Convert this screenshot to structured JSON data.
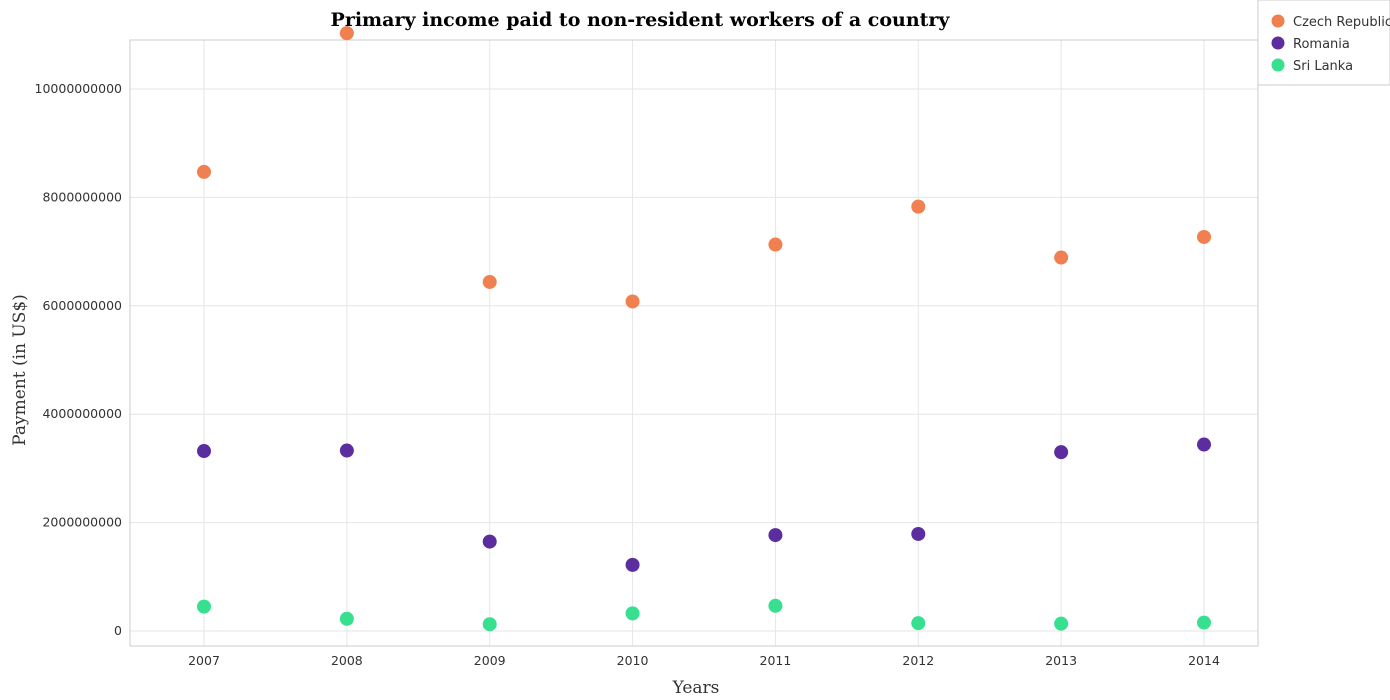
{
  "chart_data": {
    "type": "scatter",
    "title": "Primary income paid to non-resident workers of a country",
    "xlabel": "Years",
    "ylabel": "Payment (in US$)",
    "categories": [
      "2007",
      "2008",
      "2009",
      "2010",
      "2011",
      "2012",
      "2013",
      "2014"
    ],
    "ylim": [
      0,
      11500000000
    ],
    "yticks": [
      0,
      2000000000,
      4000000000,
      6000000000,
      8000000000,
      10000000000
    ],
    "ytick_labels": [
      "0",
      "2000000000",
      "4000000000",
      "6000000000",
      "8000000000",
      "10000000000"
    ],
    "grid": true,
    "legend_position": "top-right",
    "series": [
      {
        "name": "Czech Republic",
        "color": "#f0804f",
        "values": [
          8470000000,
          11030000000,
          6440000000,
          6080000000,
          7130000000,
          7830000000,
          6890000000,
          7270000000
        ]
      },
      {
        "name": "Romania",
        "color": "#5b2d9e",
        "values": [
          3320000000,
          3330000000,
          1650000000,
          1220000000,
          1770000000,
          1790000000,
          3300000000,
          3440000000
        ]
      },
      {
        "name": "Sri Lanka",
        "color": "#36e08e",
        "values": [
          450000000,
          225000000,
          125000000,
          325000000,
          465000000,
          145000000,
          135000000,
          155000000
        ]
      }
    ]
  }
}
